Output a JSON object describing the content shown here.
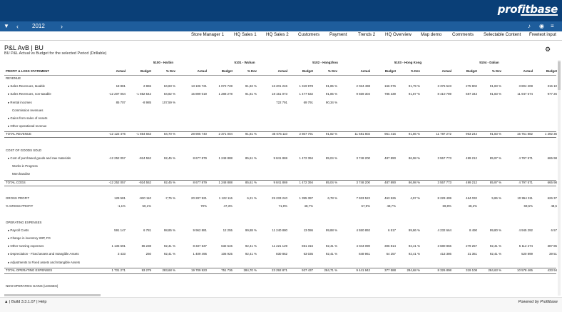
{
  "app": {
    "logo": "profitbase"
  },
  "nav": {
    "filter_icon": "filter-icon",
    "year": "2012",
    "prev": "‹",
    "next": "›"
  },
  "menu": [
    "Store Manager 1",
    "HQ Sales 1",
    "HQ Sales 2",
    "Customers",
    "Payment",
    "Trends 2",
    "HQ Overview",
    "Map demo",
    "Comments",
    "Selectable Content",
    "Freetext input"
  ],
  "report": {
    "title": "P&L AvB | BU",
    "subtitle": "BU P&L Actual vs Budget for the selected Period (Drillable)"
  },
  "units": [
    "5100 - Harbin",
    "5101 - Wuhan",
    "5102 - Hangzhou",
    "5103 - Hong Kong",
    "5104 - Dalian"
  ],
  "columns": [
    "Actual",
    "Budget",
    "% Dev"
  ],
  "header_label": "PROFIT & LOSS STATEMENT",
  "rows": [
    {
      "label": "REVENUE",
      "vals": []
    },
    {
      "label": "▸ Sales Revenues, taxable",
      "vals": [
        "18 881",
        "2 865",
        "84,83 %",
        "13 106 721",
        "1 072 728",
        "91,82 %",
        "16 201 246",
        "1 319 978",
        "91,85 %",
        "2 024 498",
        "166 076",
        "91,79 %",
        "3 376 523",
        "275 902",
        "91,83 %",
        "3 804 208",
        "315 10"
      ]
    },
    {
      "label": "▸ Sales Revenues, non-taxable",
      "vals": [
        "-12 207 064",
        "-1 852 542",
        "84,82 %",
        "15 899 019",
        "1 288 278",
        "91,81 %",
        "18 151 073",
        "1 477 632",
        "91,85 %",
        "9 659 304",
        "785 339",
        "91,87 %",
        "8 410 789",
        "687 343",
        "91,83 %",
        "11 947 674",
        "977 26"
      ]
    },
    {
      "label": "▸ Rental incomes",
      "vals": [
        "85 707",
        "-8 985",
        "107,59 %",
        "",
        "",
        "",
        "722 791",
        "69 791",
        "90,34 %",
        "",
        "",
        "",
        "",
        "",
        "",
        "",
        ""
      ]
    },
    {
      "label": "Commission revenues",
      "vals": []
    },
    {
      "label": "▸ Gains from sales of Assets",
      "vals": []
    },
    {
      "label": "▸ Other operational revenue",
      "vals": []
    },
    {
      "label": "TOTAL REVENUE",
      "vals": [
        "-12 122 476",
        "-1 854 663",
        "84,70 %",
        "28 905 740",
        "2 371 004",
        "91,81 %",
        "35 075 110",
        "2 867 791",
        "91,82 %",
        "11 681 802",
        "951 416",
        "91,86 %",
        "11 787 272",
        "963 244",
        "91,83 %",
        "15 751 882",
        "1 292 36"
      ]
    },
    {
      "label": "",
      "vals": []
    },
    {
      "label": "COST OF GOODS SOLD",
      "vals": []
    },
    {
      "label": "▸ Cost of purchased goods and raw materials",
      "vals": [
        "-12 252 057",
        "-924 552",
        "92,45 %",
        "8 677 879",
        "1 248 888",
        "85,61 %",
        "9 841 869",
        "1 472 394",
        "85,04 %",
        "3 748 200",
        "487 890",
        "86,98 %",
        "3 557 773",
        "499 212",
        "85,97 %",
        "4 797 571",
        "665 98"
      ]
    },
    {
      "label": "Works in Progress",
      "vals": []
    },
    {
      "label": "Merchandise",
      "vals": []
    },
    {
      "label": "TOTAL COGS",
      "vals": [
        "-12 252 057",
        "-924 552",
        "92,45 %",
        "8 677 879",
        "1 248 888",
        "85,61 %",
        "9 841 869",
        "1 472 394",
        "85,04 %",
        "3 748 200",
        "487 890",
        "86,98 %",
        "3 557 773",
        "499 212",
        "85,97 %",
        "4 797 571",
        "665 98"
      ]
    },
    {
      "label": "",
      "vals": []
    },
    {
      "label": "GROSS PROFIT",
      "vals": [
        "129 581",
        "-930 110",
        "-7,75 %",
        "20 287 921",
        "1 122 116",
        "6,21 %",
        "25 233 240",
        "1 395 397",
        "6,78 %",
        "7 933 522",
        "463 526",
        "4,97 %",
        "8 229 499",
        "464 032",
        "5,86 %",
        "10 954 311",
        "626 37"
      ]
    },
    {
      "label": "% GROSS PROFIT",
      "vals": [
        "-1,1%",
        "50,1%",
        "",
        "70%",
        "47,3%",
        "",
        "71,9%",
        "48,7%",
        "",
        "67,9%",
        "48,7%",
        "",
        "69,8%",
        "48,2%",
        "",
        "69,5%",
        "48,5"
      ]
    },
    {
      "label": "",
      "vals": []
    },
    {
      "label": "OPERATING EXPENSES",
      "vals": []
    },
    {
      "label": "▸ Payroll Costs",
      "vals": [
        "591 147",
        "6 781",
        "98,85 %",
        "9 962 881",
        "12 255",
        "99,88 %",
        "11 240 880",
        "13 086",
        "99,88 %",
        "4 550 892",
        "6 517",
        "99,86 %",
        "4 232 664",
        "8 490",
        "99,80 %",
        "4 945 292",
        "6 57"
      ]
    },
    {
      "label": "▸ Change in inventory WIP, FG",
      "vals": []
    },
    {
      "label": "▸ Other running expenses",
      "vals": [
        "1 136 691",
        "86 238",
        "92,41 %",
        "8 337 537",
        "632 546",
        "92,41 %",
        "11 221 129",
        "851 316",
        "92,41 %",
        "4 044 090",
        "306 814",
        "92,41 %",
        "3 680 866",
        "279 257",
        "92,41 %",
        "5 112 274",
        "387 85"
      ]
    },
    {
      "label": "▸ Depreciation - Fixed assets and Intangible Assets",
      "vals": [
        "3 433",
        "260",
        "92,41 %",
        "1 409 495",
        "106 925",
        "92,41 %",
        "830 862",
        "63 035",
        "92,41 %",
        "848 961",
        "64 257",
        "92,41 %",
        "413 386",
        "31 361",
        "92,41 %",
        "520 899",
        "39 51"
      ]
    },
    {
      "label": "▸ Adjustments to Fixed assets and Intangible Assets",
      "vals": []
    },
    {
      "label": "TOTAL OPERATING EXPENSES",
      "vals": [
        "1 731 271",
        "93 279",
        "283,68 %",
        "19 709 923",
        "751 736",
        "284,70 %",
        "23 292 871",
        "927 437",
        "284,71 %",
        "9 441 942",
        "377 588",
        "284,68 %",
        "8 326 898",
        "319 108",
        "284,63 %",
        "10 578 465",
        "433 94"
      ]
    },
    {
      "label": "",
      "vals": []
    },
    {
      "label": "NON-OPERATING GAINS (LOSSES)",
      "vals": []
    }
  ],
  "footer": {
    "build": "| Build 3.3.1.07 | Help",
    "powered": "Powered by Profitbase"
  }
}
